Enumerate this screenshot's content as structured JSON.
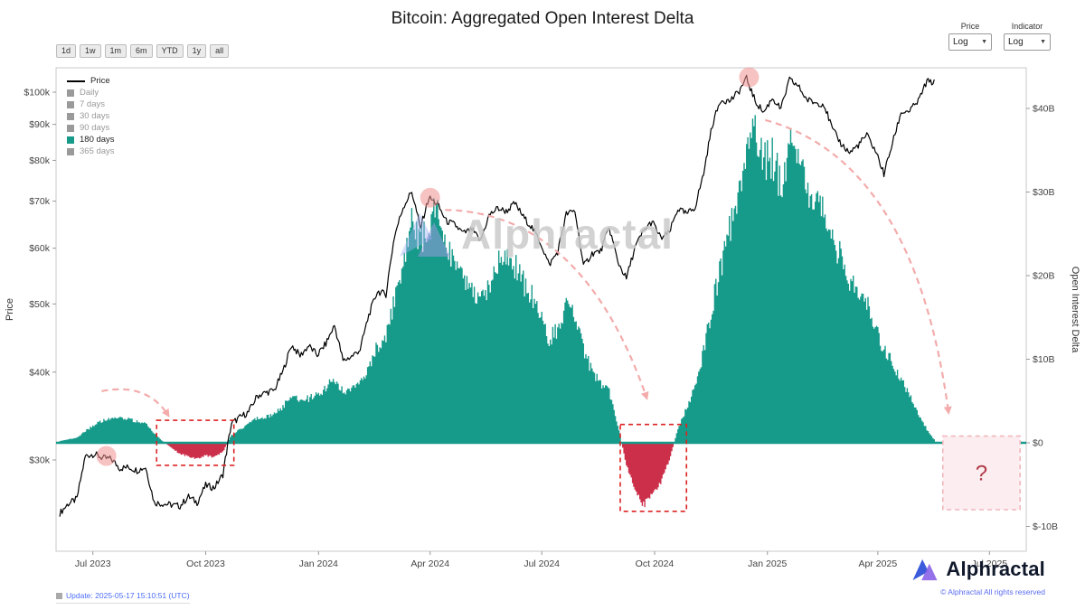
{
  "title": "Bitcoin: Aggregated Open Interest Delta",
  "watermark": "Alphractal",
  "toolbar": {
    "ranges": [
      "1d",
      "1w",
      "1m",
      "6m",
      "YTD",
      "1y",
      "all"
    ]
  },
  "controls": {
    "price_label": "Price",
    "price_value": "Log",
    "indicator_label": "Indicator",
    "indicator_value": "Log",
    "caret": "▼"
  },
  "legend": {
    "items": [
      {
        "label": "Price",
        "type": "line",
        "color": "#000000",
        "active": true
      },
      {
        "label": "Daily",
        "type": "square",
        "color": "#9a9a9a",
        "active": false
      },
      {
        "label": "7 days",
        "type": "square",
        "color": "#9a9a9a",
        "active": false
      },
      {
        "label": "30 days",
        "type": "square",
        "color": "#9a9a9a",
        "active": false
      },
      {
        "label": "90 days",
        "type": "square",
        "color": "#9a9a9a",
        "active": false
      },
      {
        "label": "180 days",
        "type": "square",
        "color": "#169a8a",
        "active": true
      },
      {
        "label": "365 days",
        "type": "square",
        "color": "#9a9a9a",
        "active": false
      }
    ]
  },
  "footer": {
    "update_text": "Update: 2025-05-17 15:10:51 (UTC)",
    "brand": "Alphractal",
    "copyright": "© Alphractal All rights reserved"
  },
  "chart_data": {
    "type": "mixed",
    "x_domain": [
      "2023-06-01",
      "2025-07-31"
    ],
    "x_ticks": [
      {
        "date": "2023-07-01",
        "label": "Jul 2023"
      },
      {
        "date": "2023-10-01",
        "label": "Oct 2023"
      },
      {
        "date": "2024-01-01",
        "label": "Jan 2024"
      },
      {
        "date": "2024-04-01",
        "label": "Apr 2024"
      },
      {
        "date": "2024-07-01",
        "label": "Jul 2024"
      },
      {
        "date": "2024-10-01",
        "label": "Oct 2024"
      },
      {
        "date": "2025-01-01",
        "label": "Jan 2025"
      },
      {
        "date": "2025-04-01",
        "label": "Apr 2025"
      },
      {
        "date": "2025-07-01",
        "label": "Jul 2025"
      }
    ],
    "left_axis": {
      "title": "Price",
      "scale": "log",
      "unit": "USD thousands",
      "ticks": [
        {
          "v": 100,
          "label": "$100k"
        },
        {
          "v": 90,
          "label": "$90k"
        },
        {
          "v": 80,
          "label": "$80k"
        },
        {
          "v": 70,
          "label": "$70k"
        },
        {
          "v": 60,
          "label": "$60k"
        },
        {
          "v": 50,
          "label": "$50k"
        },
        {
          "v": 40,
          "label": "$40k"
        },
        {
          "v": 30,
          "label": "$30k"
        }
      ]
    },
    "right_axis": {
      "title": "Open Interest Delta",
      "scale": "linear",
      "unit": "USD billions",
      "ticks": [
        {
          "v": 40,
          "label": "$40B"
        },
        {
          "v": 30,
          "label": "$30B"
        },
        {
          "v": 20,
          "label": "$20B"
        },
        {
          "v": 10,
          "label": "$10B"
        },
        {
          "v": 0,
          "label": "$0"
        },
        {
          "v": -10,
          "label": "$-10B"
        }
      ]
    },
    "series": [
      {
        "name": "Price",
        "type": "line",
        "axis": "left",
        "color": "#000000"
      },
      {
        "name": "Open Interest Delta (180 days)",
        "type": "bar",
        "axis": "right",
        "positive_color": "#169a8a",
        "negative_color": "#cc2f4a"
      }
    ],
    "points_format": [
      "date",
      "price_usd_k",
      "oi_delta_usd_b"
    ],
    "points": [
      [
        "2023-06-04",
        25.2,
        0.2
      ],
      [
        "2023-06-11",
        26.0,
        0.4
      ],
      [
        "2023-06-18",
        26.4,
        0.6
      ],
      [
        "2023-06-25",
        30.4,
        1.4
      ],
      [
        "2023-07-02",
        30.6,
        2.1
      ],
      [
        "2023-07-09",
        30.2,
        2.6
      ],
      [
        "2023-07-16",
        30.1,
        2.9
      ],
      [
        "2023-07-23",
        29.2,
        3.1
      ],
      [
        "2023-07-30",
        29.3,
        2.8
      ],
      [
        "2023-08-06",
        29.0,
        2.6
      ],
      [
        "2023-08-13",
        29.3,
        2.3
      ],
      [
        "2023-08-20",
        26.1,
        1.1
      ],
      [
        "2023-08-27",
        26.0,
        0.2
      ],
      [
        "2023-09-03",
        25.9,
        -0.6
      ],
      [
        "2023-09-10",
        25.8,
        -1.3
      ],
      [
        "2023-09-17",
        26.6,
        -1.6
      ],
      [
        "2023-09-24",
        26.1,
        -1.9
      ],
      [
        "2023-10-01",
        27.6,
        -1.5
      ],
      [
        "2023-10-08",
        27.4,
        -1.7
      ],
      [
        "2023-10-15",
        28.6,
        -1.1
      ],
      [
        "2023-10-22",
        33.8,
        0.9
      ],
      [
        "2023-10-29",
        34.5,
        1.6
      ],
      [
        "2023-11-05",
        35.1,
        2.3
      ],
      [
        "2023-11-12",
        37.0,
        2.9
      ],
      [
        "2023-11-19",
        37.4,
        3.1
      ],
      [
        "2023-11-26",
        37.7,
        3.5
      ],
      [
        "2023-12-03",
        40.1,
        4.3
      ],
      [
        "2023-12-10",
        43.7,
        5.6
      ],
      [
        "2023-12-17",
        42.2,
        5.1
      ],
      [
        "2023-12-24",
        43.6,
        5.3
      ],
      [
        "2023-12-31",
        42.3,
        5.7
      ],
      [
        "2024-01-07",
        43.9,
        6.6
      ],
      [
        "2024-01-14",
        46.6,
        7.6
      ],
      [
        "2024-01-21",
        41.5,
        6.1
      ],
      [
        "2024-01-28",
        42.1,
        6.3
      ],
      [
        "2024-02-04",
        43.1,
        7.1
      ],
      [
        "2024-02-11",
        48.2,
        9.2
      ],
      [
        "2024-02-18",
        52.1,
        11.6
      ],
      [
        "2024-02-25",
        51.6,
        12.6
      ],
      [
        "2024-03-03",
        62.5,
        17.2
      ],
      [
        "2024-03-10",
        68.6,
        21.5
      ],
      [
        "2024-03-17",
        72.3,
        26.2
      ],
      [
        "2024-03-24",
        64.0,
        23.8
      ],
      [
        "2024-03-31",
        70.8,
        26.6
      ],
      [
        "2024-04-07",
        69.3,
        27.6
      ],
      [
        "2024-04-14",
        65.6,
        23.9
      ],
      [
        "2024-04-21",
        64.8,
        21.2
      ],
      [
        "2024-04-28",
        63.0,
        19.6
      ],
      [
        "2024-05-05",
        63.8,
        18.2
      ],
      [
        "2024-05-12",
        61.4,
        16.6
      ],
      [
        "2024-05-19",
        66.8,
        19.2
      ],
      [
        "2024-05-26",
        68.4,
        21.6
      ],
      [
        "2024-06-02",
        67.7,
        22.1
      ],
      [
        "2024-06-09",
        69.5,
        21.2
      ],
      [
        "2024-06-16",
        66.5,
        19.1
      ],
      [
        "2024-06-23",
        64.2,
        17.6
      ],
      [
        "2024-06-30",
        61.1,
        15.1
      ],
      [
        "2024-07-07",
        56.8,
        12.4
      ],
      [
        "2024-07-14",
        59.3,
        13.6
      ],
      [
        "2024-07-21",
        67.1,
        16.1
      ],
      [
        "2024-07-28",
        67.8,
        15.2
      ],
      [
        "2024-08-04",
        56.5,
        11.2
      ],
      [
        "2024-08-11",
        59.0,
        8.6
      ],
      [
        "2024-08-18",
        59.4,
        7.1
      ],
      [
        "2024-08-25",
        64.2,
        6.1
      ],
      [
        "2024-09-01",
        57.4,
        2.1
      ],
      [
        "2024-09-08",
        54.3,
        -2.6
      ],
      [
        "2024-09-15",
        60.1,
        -5.6
      ],
      [
        "2024-09-22",
        63.5,
        -7.6
      ],
      [
        "2024-09-29",
        65.5,
        -6.1
      ],
      [
        "2024-10-06",
        62.0,
        -4.6
      ],
      [
        "2024-10-13",
        63.1,
        -2.1
      ],
      [
        "2024-10-20",
        68.3,
        1.6
      ],
      [
        "2024-10-27",
        67.1,
        4.1
      ],
      [
        "2024-11-03",
        68.6,
        6.6
      ],
      [
        "2024-11-10",
        76.6,
        11.1
      ],
      [
        "2024-11-17",
        89.8,
        16.2
      ],
      [
        "2024-11-24",
        97.6,
        21.2
      ],
      [
        "2024-12-01",
        97.1,
        25.2
      ],
      [
        "2024-12-08",
        99.8,
        30.2
      ],
      [
        "2024-12-15",
        104.6,
        35.2
      ],
      [
        "2024-12-22",
        97.1,
        38.6
      ],
      [
        "2024-12-29",
        93.6,
        33.2
      ],
      [
        "2025-01-05",
        98.1,
        34.2
      ],
      [
        "2025-01-12",
        94.6,
        31.2
      ],
      [
        "2025-01-19",
        104.1,
        36.1
      ],
      [
        "2025-01-26",
        102.1,
        34.6
      ],
      [
        "2025-02-02",
        97.6,
        30.1
      ],
      [
        "2025-02-09",
        96.6,
        28.6
      ],
      [
        "2025-02-16",
        96.2,
        27.1
      ],
      [
        "2025-02-23",
        88.5,
        24.1
      ],
      [
        "2025-03-02",
        84.5,
        22.1
      ],
      [
        "2025-03-09",
        82.0,
        19.6
      ],
      [
        "2025-03-16",
        84.1,
        18.1
      ],
      [
        "2025-03-23",
        86.9,
        16.6
      ],
      [
        "2025-03-30",
        82.6,
        14.1
      ],
      [
        "2025-04-06",
        76.5,
        11.1
      ],
      [
        "2025-04-13",
        84.6,
        9.6
      ],
      [
        "2025-04-20",
        93.6,
        7.6
      ],
      [
        "2025-04-27",
        94.1,
        5.6
      ],
      [
        "2025-05-04",
        97.1,
        3.6
      ],
      [
        "2025-05-11",
        103.6,
        1.6
      ],
      [
        "2025-05-17",
        103.2,
        0.4
      ]
    ],
    "annotations": {
      "rect_color": "#dd2222",
      "circle_color": "#ef8f8f",
      "arrow_color": "#f2a3a3",
      "circles": [
        {
          "date": "2023-07-12",
          "price_k": 30.4
        },
        {
          "date": "2024-04-01",
          "price_k": 70.8
        },
        {
          "date": "2024-12-17",
          "price_k": 105.0
        }
      ],
      "rects": [
        {
          "x0": "2023-08-22",
          "x1": "2023-10-24",
          "y0_b": 2.7,
          "y1_b": -2.7
        },
        {
          "x0": "2024-09-03",
          "x1": "2024-10-27",
          "y0_b": 2.2,
          "y1_b": -8.2
        }
      ],
      "question_box": {
        "x0": "2025-05-24",
        "x1": "2025-07-26",
        "y0_b": 0.8,
        "y1_b": -8.0,
        "label": "?",
        "fill": "#fceef0",
        "border": "#f0b6bc",
        "text_color": "#b03a48"
      },
      "arrows": [
        {
          "x0": 0.047,
          "y0": 0.669,
          "cx": 0.094,
          "cy": 0.65,
          "x1": 0.116,
          "y1": 0.72
        },
        {
          "x0": 0.401,
          "y0": 0.294,
          "cx": 0.543,
          "cy": 0.299,
          "x1": 0.609,
          "y1": 0.684
        },
        {
          "x0": 0.731,
          "y0": 0.108,
          "cx": 0.885,
          "cy": 0.193,
          "x1": 0.92,
          "y1": 0.714
        }
      ]
    }
  }
}
